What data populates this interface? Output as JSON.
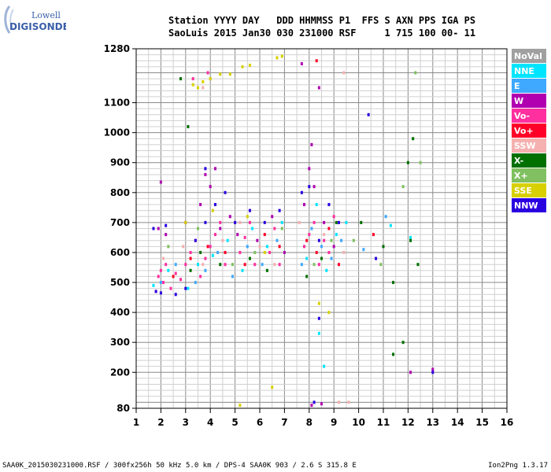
{
  "logo": {
    "line1": "Lowell",
    "line2": "DIGISONDE"
  },
  "header": {
    "line1": "Station YYYY DAY   DDD HHMMSS P1  FFS S AXN PPS IGA PS",
    "line2": "SaoLuis 2015 Jan30 030 231000 RSF     1 715 100 00- 11"
  },
  "legend": [
    {
      "label": "NoVal",
      "color": "#a0a0a0"
    },
    {
      "label": "NNE",
      "color": "#00e5ff"
    },
    {
      "label": "E",
      "color": "#3fa9ff"
    },
    {
      "label": "W",
      "color": "#b000b0"
    },
    {
      "label": "Vo-",
      "color": "#ff2fa0"
    },
    {
      "label": "Vo+",
      "color": "#ff0028"
    },
    {
      "label": "SSW",
      "color": "#f5b0b0"
    },
    {
      "label": "X-",
      "color": "#007000"
    },
    {
      "label": "X+",
      "color": "#80c060"
    },
    {
      "label": "SSE",
      "color": "#d8d000"
    },
    {
      "label": "NNW",
      "color": "#2a00e0"
    }
  ],
  "footer": {
    "left": "SAA0K_2015030231000.RSF / 300fx256h 50 kHz 5.0 km / DPS-4 SAA0K 903 / 2.6 S 315.8 E",
    "right": "Ion2Png 1.3.17"
  },
  "chart_data": {
    "type": "scatter",
    "title": "",
    "xlabel": "",
    "ylabel": "",
    "xlim": [
      1,
      16
    ],
    "ylim": [
      80,
      1280
    ],
    "x_ticks": [
      1,
      2,
      3,
      4,
      5,
      6,
      7,
      8,
      9,
      10,
      11,
      12,
      13,
      14,
      15,
      16
    ],
    "y_ticks": [
      80,
      200,
      300,
      400,
      500,
      600,
      700,
      800,
      900,
      1000,
      1100,
      1280
    ],
    "grid": true,
    "legend_position": "right",
    "series": [
      {
        "name": "Vo-",
        "points": [
          [
            1.8,
            470
          ],
          [
            1.9,
            520
          ],
          [
            2.0,
            540
          ],
          [
            2.1,
            500
          ],
          [
            2.2,
            560
          ],
          [
            2.4,
            480
          ],
          [
            2.6,
            530
          ],
          [
            2.8,
            510
          ],
          [
            3.0,
            560
          ],
          [
            3.2,
            600
          ],
          [
            3.4,
            640
          ],
          [
            3.6,
            520
          ],
          [
            3.8,
            580
          ],
          [
            4.0,
            620
          ],
          [
            4.2,
            660
          ],
          [
            4.4,
            700
          ],
          [
            4.6,
            560
          ],
          [
            5.2,
            600
          ],
          [
            5.4,
            650
          ],
          [
            5.6,
            700
          ],
          [
            5.8,
            560
          ],
          [
            6.4,
            600
          ],
          [
            6.6,
            680
          ],
          [
            6.8,
            560
          ],
          [
            7.8,
            620
          ],
          [
            8.0,
            660
          ],
          [
            8.2,
            700
          ],
          [
            8.4,
            560
          ],
          [
            8.6,
            640
          ],
          [
            8.8,
            600
          ],
          [
            9.0,
            720
          ],
          [
            3.3,
            1180
          ],
          [
            3.9,
            1200
          ]
        ]
      },
      {
        "name": "NNE",
        "points": [
          [
            1.7,
            490
          ],
          [
            2.3,
            540
          ],
          [
            3.1,
            480
          ],
          [
            3.5,
            560
          ],
          [
            4.1,
            590
          ],
          [
            4.7,
            640
          ],
          [
            5.3,
            540
          ],
          [
            5.7,
            680
          ],
          [
            6.3,
            620
          ],
          [
            6.9,
            700
          ],
          [
            7.9,
            580
          ],
          [
            8.3,
            760
          ],
          [
            8.7,
            540
          ],
          [
            9.1,
            660
          ],
          [
            9.5,
            700
          ],
          [
            11.3,
            690
          ],
          [
            12.1,
            650
          ],
          [
            8.4,
            330
          ],
          [
            8.6,
            220
          ]
        ]
      },
      {
        "name": "E",
        "points": [
          [
            2.0,
            500
          ],
          [
            2.6,
            560
          ],
          [
            3.4,
            500
          ],
          [
            3.8,
            540
          ],
          [
            4.3,
            600
          ],
          [
            4.9,
            520
          ],
          [
            5.5,
            620
          ],
          [
            6.1,
            560
          ],
          [
            6.7,
            640
          ],
          [
            7.7,
            560
          ],
          [
            8.1,
            680
          ],
          [
            8.5,
            620
          ],
          [
            8.9,
            580
          ],
          [
            9.3,
            640
          ],
          [
            10.2,
            610
          ],
          [
            11.1,
            720
          ]
        ]
      },
      {
        "name": "W",
        "points": [
          [
            1.9,
            680
          ],
          [
            2.2,
            660
          ],
          [
            3.0,
            700
          ],
          [
            3.6,
            760
          ],
          [
            4.0,
            820
          ],
          [
            4.4,
            680
          ],
          [
            4.8,
            720
          ],
          [
            5.1,
            660
          ],
          [
            5.9,
            640
          ],
          [
            6.5,
            720
          ],
          [
            7.0,
            600
          ],
          [
            7.8,
            760
          ],
          [
            8.2,
            820
          ],
          [
            8.6,
            700
          ],
          [
            9.0,
            620
          ],
          [
            2.0,
            835
          ],
          [
            3.8,
            860
          ],
          [
            4.2,
            880
          ],
          [
            8.0,
            880
          ],
          [
            8.1,
            960
          ],
          [
            8.4,
            1150
          ],
          [
            7.7,
            1230
          ],
          [
            13.0,
            210
          ],
          [
            12.1,
            200
          ],
          [
            8.1,
            90
          ],
          [
            8.5,
            95
          ]
        ]
      },
      {
        "name": "Vo+",
        "points": [
          [
            2.5,
            520
          ],
          [
            3.2,
            580
          ],
          [
            3.9,
            620
          ],
          [
            4.6,
            600
          ],
          [
            5.4,
            560
          ],
          [
            6.2,
            660
          ],
          [
            6.8,
            620
          ],
          [
            7.9,
            640
          ],
          [
            8.3,
            600
          ],
          [
            8.8,
            680
          ],
          [
            9.2,
            560
          ],
          [
            10.6,
            660
          ],
          [
            8.3,
            1240
          ]
        ]
      },
      {
        "name": "SSW",
        "points": [
          [
            2.1,
            580
          ],
          [
            2.9,
            620
          ],
          [
            3.7,
            560
          ],
          [
            4.5,
            640
          ],
          [
            5.2,
            700
          ],
          [
            6.0,
            620
          ],
          [
            6.6,
            560
          ],
          [
            7.6,
            700
          ],
          [
            8.6,
            660
          ],
          [
            9.4,
            600
          ],
          [
            3.7,
            1150
          ],
          [
            4.0,
            1180
          ],
          [
            9.2,
            100
          ],
          [
            9.6,
            100
          ],
          [
            9.4,
            1200
          ]
        ]
      },
      {
        "name": "X-",
        "points": [
          [
            3.2,
            540
          ],
          [
            3.6,
            600
          ],
          [
            4.4,
            560
          ],
          [
            5.6,
            580
          ],
          [
            6.3,
            540
          ],
          [
            7.9,
            520
          ],
          [
            8.5,
            580
          ],
          [
            9.1,
            700
          ],
          [
            10.1,
            700
          ],
          [
            11.0,
            620
          ],
          [
            11.4,
            500
          ],
          [
            12.0,
            900
          ],
          [
            12.1,
            640
          ],
          [
            12.2,
            980
          ],
          [
            11.4,
            260
          ],
          [
            11.8,
            300
          ],
          [
            12.4,
            560
          ],
          [
            3.1,
            1020
          ],
          [
            2.8,
            1180
          ]
        ]
      },
      {
        "name": "X+",
        "points": [
          [
            2.3,
            620
          ],
          [
            3.5,
            680
          ],
          [
            4.9,
            560
          ],
          [
            5.8,
            600
          ],
          [
            6.9,
            680
          ],
          [
            8.2,
            560
          ],
          [
            8.9,
            640
          ],
          [
            9.8,
            640
          ],
          [
            10.9,
            560
          ],
          [
            11.8,
            820
          ],
          [
            12.3,
            1200
          ],
          [
            12.5,
            900
          ]
        ]
      },
      {
        "name": "SSE",
        "points": [
          [
            3.3,
            1160
          ],
          [
            3.5,
            1150
          ],
          [
            3.7,
            1170
          ],
          [
            4.0,
            1180
          ],
          [
            4.4,
            1195
          ],
          [
            4.8,
            1195
          ],
          [
            5.3,
            1220
          ],
          [
            5.6,
            1225
          ],
          [
            6.7,
            1250
          ],
          [
            6.9,
            1255
          ],
          [
            6.5,
            150
          ],
          [
            5.2,
            90
          ],
          [
            8.4,
            430
          ],
          [
            8.8,
            400
          ],
          [
            3.0,
            700
          ],
          [
            4.1,
            740
          ],
          [
            5.5,
            720
          ],
          [
            6.2,
            600
          ]
        ]
      },
      {
        "name": "NNW",
        "points": [
          [
            1.7,
            680
          ],
          [
            1.8,
            470
          ],
          [
            2.0,
            465
          ],
          [
            2.2,
            690
          ],
          [
            2.6,
            460
          ],
          [
            3.0,
            480
          ],
          [
            3.4,
            640
          ],
          [
            3.8,
            700
          ],
          [
            4.2,
            760
          ],
          [
            4.6,
            800
          ],
          [
            5.0,
            700
          ],
          [
            5.6,
            740
          ],
          [
            6.2,
            700
          ],
          [
            6.8,
            740
          ],
          [
            7.7,
            800
          ],
          [
            8.0,
            820
          ],
          [
            8.4,
            640
          ],
          [
            8.8,
            760
          ],
          [
            9.2,
            700
          ],
          [
            10.7,
            580
          ],
          [
            10.4,
            1060
          ],
          [
            3.8,
            880
          ],
          [
            13.0,
            200
          ],
          [
            8.2,
            100
          ],
          [
            8.4,
            380
          ]
        ]
      }
    ]
  }
}
